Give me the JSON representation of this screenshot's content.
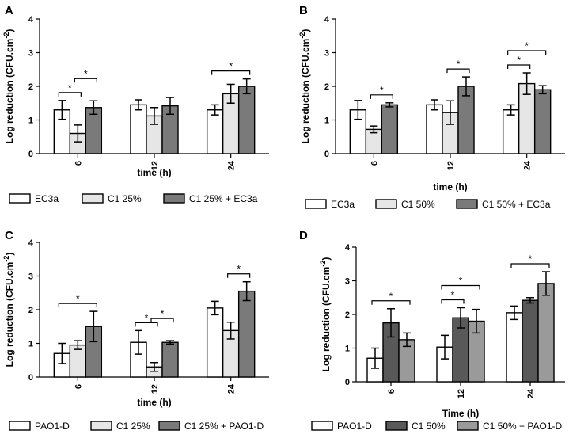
{
  "chart_data": [
    {
      "panel": "A",
      "type": "bar",
      "categories": [
        "6",
        "12",
        "24"
      ],
      "xlabel": "time (h)",
      "ylabel": "Log reduction (CFU.cm",
      "ylabel_sup": "-2",
      "ylabel_close": ")",
      "ylim": [
        0,
        4
      ],
      "yticks": [
        "0",
        "1",
        "2",
        "3",
        "4"
      ],
      "series": [
        {
          "name": "EC3a",
          "color": "#ffffff",
          "values": [
            1.3,
            1.45,
            1.3
          ],
          "errors": [
            0.28,
            0.15,
            0.15
          ]
        },
        {
          "name": "C1 25%",
          "color": "#e6e6e6",
          "values": [
            0.6,
            1.12,
            1.78
          ],
          "errors": [
            0.25,
            0.25,
            0.28
          ]
        },
        {
          "name": "C1 25% + EC3a",
          "color": "#7a7a7a",
          "values": [
            1.37,
            1.42,
            2.0
          ],
          "errors": [
            0.2,
            0.25,
            0.22
          ]
        }
      ],
      "significance": [
        {
          "group": 0,
          "from": 0,
          "to": 1,
          "label": "*"
        },
        {
          "group": 0,
          "from": 1,
          "to": 2,
          "label": "*"
        },
        {
          "group": 2,
          "from": 0,
          "to": 2,
          "label": "*"
        }
      ]
    },
    {
      "panel": "B",
      "type": "bar",
      "categories": [
        "6",
        "12",
        "24"
      ],
      "xlabel": "time (h)",
      "ylabel": "Log reduction (CFU.cm",
      "ylabel_sup": "-2",
      "ylabel_close": ")",
      "ylim": [
        0,
        4
      ],
      "yticks": [
        "0",
        "1",
        "2",
        "3",
        "4"
      ],
      "series": [
        {
          "name": "EC3a",
          "color": "#ffffff",
          "values": [
            1.3,
            1.45,
            1.3
          ],
          "errors": [
            0.28,
            0.15,
            0.15
          ]
        },
        {
          "name": "C1 50%",
          "color": "#e6e6e6",
          "values": [
            0.72,
            1.22,
            2.08
          ],
          "errors": [
            0.1,
            0.35,
            0.32
          ]
        },
        {
          "name": "C1 50% + EC3a",
          "color": "#7a7a7a",
          "values": [
            1.45,
            2.0,
            1.9
          ],
          "errors": [
            0.06,
            0.28,
            0.12
          ]
        }
      ],
      "significance": [
        {
          "group": 0,
          "from": 1,
          "to": 2,
          "label": "*"
        },
        {
          "group": 1,
          "from": 1,
          "to": 2,
          "label": "*"
        },
        {
          "group": 2,
          "from": 0,
          "to": 1,
          "label": "*"
        },
        {
          "group": 2,
          "from": 0,
          "to": 2,
          "label": "*"
        }
      ]
    },
    {
      "panel": "C",
      "type": "bar",
      "categories": [
        "6",
        "12",
        "24"
      ],
      "xlabel": "time (h)",
      "ylabel": "Log reduction (CFU.cm",
      "ylabel_sup": "-2",
      "ylabel_close": ")",
      "ylim": [
        0,
        4
      ],
      "yticks": [
        "0",
        "1",
        "2",
        "3",
        "4"
      ],
      "series": [
        {
          "name": "PAO1-D",
          "color": "#ffffff",
          "values": [
            0.7,
            1.03,
            2.05
          ],
          "errors": [
            0.3,
            0.35,
            0.2
          ]
        },
        {
          "name": "C1 25%",
          "color": "#e6e6e6",
          "values": [
            0.95,
            0.3,
            1.38
          ],
          "errors": [
            0.13,
            0.13,
            0.25
          ]
        },
        {
          "name": "C1 25% + PAO1-D",
          "color": "#7a7a7a",
          "values": [
            1.5,
            1.03,
            2.55
          ],
          "errors": [
            0.45,
            0.05,
            0.28
          ]
        }
      ],
      "significance": [
        {
          "group": 0,
          "from": 0,
          "to": 2,
          "label": "*"
        },
        {
          "group": 1,
          "from": 0,
          "to": 1,
          "label": "*"
        },
        {
          "group": 1,
          "from": 1,
          "to": 2,
          "label": "*"
        },
        {
          "group": 2,
          "from": 1,
          "to": 2,
          "label": "*"
        }
      ]
    },
    {
      "panel": "D",
      "type": "bar",
      "categories": [
        "6",
        "12",
        "24"
      ],
      "xlabel": "Time (h)",
      "ylabel": "Log reduction (CFU.cm",
      "ylabel_sup": "-2",
      "ylabel_close": ")",
      "ylim": [
        0,
        4
      ],
      "yticks": [
        "0",
        "1",
        "2",
        "3",
        "4"
      ],
      "series": [
        {
          "name": "PAO1-D",
          "color": "#ffffff",
          "values": [
            0.7,
            1.03,
            2.05
          ],
          "errors": [
            0.3,
            0.35,
            0.2
          ]
        },
        {
          "name": "C1 50%",
          "color": "#595959",
          "values": [
            1.75,
            1.9,
            2.42
          ],
          "errors": [
            0.42,
            0.3,
            0.08
          ]
        },
        {
          "name": "C1 50% + PAO1-D",
          "color": "#9a9a9a",
          "values": [
            1.25,
            1.8,
            2.92
          ],
          "errors": [
            0.2,
            0.35,
            0.35
          ]
        }
      ],
      "significance": [
        {
          "group": 0,
          "from": 0,
          "to": 2,
          "label": "*"
        },
        {
          "group": 1,
          "from": 0,
          "to": 1,
          "label": "*"
        },
        {
          "group": 1,
          "from": 0,
          "to": 2,
          "label": "*"
        },
        {
          "group": 2,
          "from": 0,
          "to": 2,
          "label": "*"
        }
      ]
    }
  ]
}
